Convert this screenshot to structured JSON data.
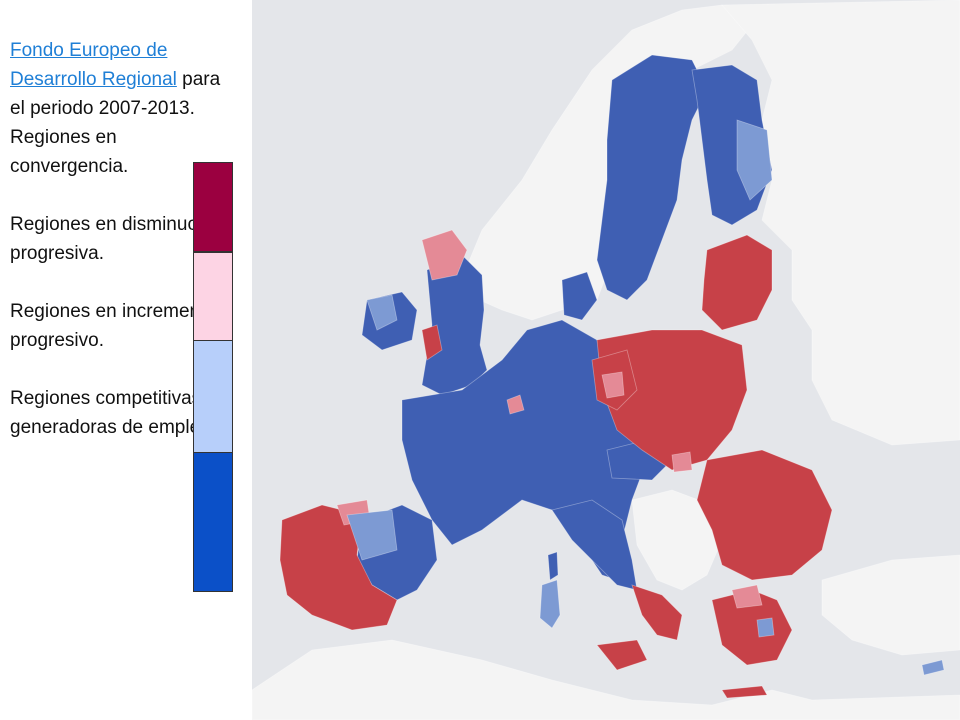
{
  "title": {
    "link_text": "Fondo Europeo de Desarrollo Regional",
    "period_text": "para el periodo 2007-2013."
  },
  "legend": [
    {
      "label": "Regiones en convergencia.",
      "color": "#9b0040"
    },
    {
      "label": "Regiones en disminución progresiva.",
      "color": "#fdd4e4"
    },
    {
      "label": "Regiones en incremento progresivo.",
      "color": "#b7cffa"
    },
    {
      "label": "Regiones competitivas y generadoras de empleo",
      "color": "#0b50c8"
    }
  ],
  "map": {
    "colors": {
      "sea": "#e4e6ea",
      "non_eu_land": "#f4f4f4",
      "convergence": "#c74148",
      "phasing_out": "#e48a96",
      "phasing_in": "#7d9ad3",
      "competitiveness": "#3f5fb3"
    }
  }
}
